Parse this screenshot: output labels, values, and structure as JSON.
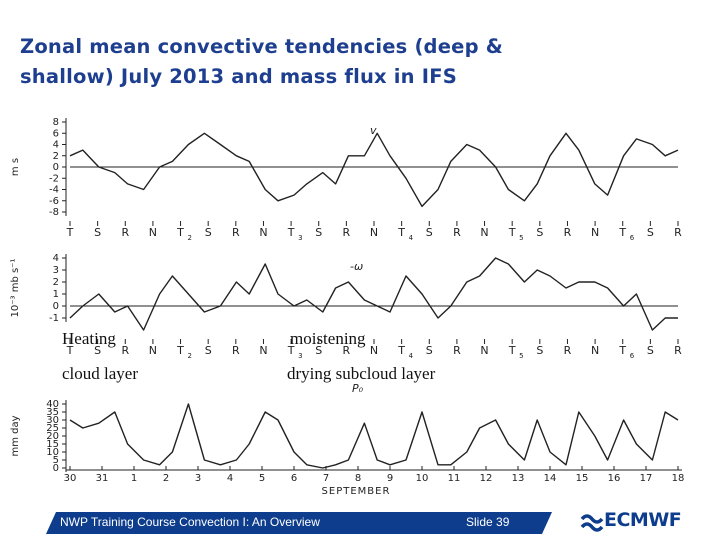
{
  "slide": {
    "title_line1": "Zonal mean convective tendencies (deep &",
    "title_line2": "shallow) July 2013 and mass flux in  IFS",
    "annotations": {
      "heating": "Heating",
      "cloud_layer": "cloud layer",
      "moistening": "moistening",
      "drying": "drying subcloud layer"
    },
    "footer_left": "NWP Training Course Convection I: An Overview",
    "footer_right": "Slide 39",
    "logo_text": "ECMWF",
    "colors": {
      "title": "#1e3f8f",
      "footer": "#0d3d8c",
      "ink": "#222222"
    }
  },
  "chart_data": [
    {
      "type": "line",
      "series": [
        {
          "name": "v",
          "x": [
            30,
            30.4,
            30.9,
            31.4,
            31.8,
            1.3,
            1.8,
            2.2,
            2.7,
            3.2,
            3.7,
            4.2,
            4.6,
            5.1,
            5.5,
            6.0,
            6.4,
            6.9,
            7.3,
            7.7,
            8.2,
            8.6,
            9.0,
            9.5,
            10.0,
            10.5,
            10.9,
            11.4,
            11.8,
            12.3,
            12.7,
            13.2,
            13.6,
            14.0,
            14.5,
            14.9,
            15.4,
            15.8,
            16.3,
            16.7,
            17.2,
            17.6,
            18.0
          ],
          "y": [
            2,
            3,
            0,
            -1,
            -3,
            -4,
            0,
            1,
            4,
            6,
            4,
            2,
            1,
            -4,
            -6,
            -5,
            -3,
            -1,
            -3,
            2,
            2,
            6,
            2,
            -2,
            -7,
            -4,
            1,
            4,
            3,
            0,
            -4,
            -6,
            -3,
            2,
            6,
            3,
            -3,
            -5,
            2,
            5,
            4,
            2,
            3
          ]
        }
      ],
      "ylabel": "m s",
      "y_ticks": [
        "8",
        "6",
        "4",
        "2",
        "0",
        "-2",
        "-4",
        "-6",
        "-8"
      ],
      "ylim": [
        -8,
        8
      ],
      "phase_labels": [
        "T",
        "S",
        "R",
        "N",
        "T",
        "S",
        "R",
        "N",
        "T",
        "S",
        "R",
        "N",
        "T",
        "S",
        "R",
        "N",
        "T",
        "S",
        "R",
        "N",
        "T",
        "S",
        "R"
      ],
      "phase_subscripts": [
        "",
        "",
        "",
        "",
        "2",
        "",
        "",
        "",
        "3",
        "",
        "",
        "",
        "4",
        "",
        "",
        "",
        "5",
        "",
        "",
        "",
        "6",
        "",
        ""
      ]
    },
    {
      "type": "line",
      "series": [
        {
          "name": "-ω",
          "x": [
            30,
            30.4,
            30.9,
            31.4,
            31.8,
            1.3,
            1.8,
            2.2,
            2.7,
            3.2,
            3.7,
            4.2,
            4.6,
            5.1,
            5.5,
            6.0,
            6.4,
            6.9,
            7.3,
            7.7,
            8.2,
            8.6,
            9.0,
            9.5,
            10.0,
            10.5,
            10.9,
            11.4,
            11.8,
            12.3,
            12.7,
            13.2,
            13.6,
            14.0,
            14.5,
            14.9,
            15.4,
            15.8,
            16.3,
            16.7,
            17.2,
            17.6,
            18.0
          ],
          "y": [
            -1,
            0,
            1,
            -0.5,
            0,
            -2,
            1,
            2.5,
            1,
            -0.5,
            0,
            2,
            1,
            3.5,
            1,
            0,
            0.5,
            -0.5,
            1.5,
            2,
            0.5,
            0,
            -0.5,
            2.5,
            1,
            -1,
            0,
            2,
            2.5,
            4,
            3.5,
            2,
            3,
            2.5,
            1.5,
            2,
            2,
            1.5,
            0,
            1,
            -2,
            -1,
            -1
          ]
        }
      ],
      "ylabel": "10⁻³ mb s⁻¹",
      "y_ticks": [
        "4",
        "3",
        "2",
        "1",
        "0",
        "-1"
      ],
      "ylim": [
        -1,
        4
      ]
    },
    {
      "type": "line",
      "series": [
        {
          "name": "P₀",
          "x": [
            30,
            30.4,
            30.9,
            31.4,
            31.8,
            1.3,
            1.8,
            2.2,
            2.7,
            3.2,
            3.7,
            4.2,
            4.6,
            5.1,
            5.5,
            6.0,
            6.4,
            6.9,
            7.3,
            7.7,
            8.2,
            8.6,
            9.0,
            9.5,
            10.0,
            10.5,
            10.9,
            11.4,
            11.8,
            12.3,
            12.7,
            13.2,
            13.6,
            14.0,
            14.5,
            14.9,
            15.4,
            15.8,
            16.3,
            16.7,
            17.2,
            17.6,
            18.0
          ],
          "y": [
            30,
            25,
            28,
            35,
            15,
            5,
            2,
            10,
            40,
            5,
            2,
            5,
            15,
            35,
            30,
            10,
            2,
            0,
            2,
            5,
            28,
            5,
            2,
            5,
            35,
            2,
            2,
            10,
            25,
            30,
            15,
            5,
            30,
            10,
            2,
            35,
            20,
            5,
            30,
            15,
            5,
            35,
            30
          ]
        }
      ],
      "ylabel": "mm day",
      "y_ticks": [
        "40",
        "35",
        "30",
        "25",
        "20",
        "15",
        "10",
        "5",
        "0"
      ],
      "ylim": [
        0,
        40
      ],
      "xlabel": "SEPTEMBER",
      "x_ticks": [
        "30",
        "31",
        "1",
        "2",
        "3",
        "4",
        "5",
        "6",
        "7",
        "8",
        "9",
        "10",
        "11",
        "12",
        "13",
        "14",
        "15",
        "16",
        "17",
        "18"
      ]
    }
  ]
}
